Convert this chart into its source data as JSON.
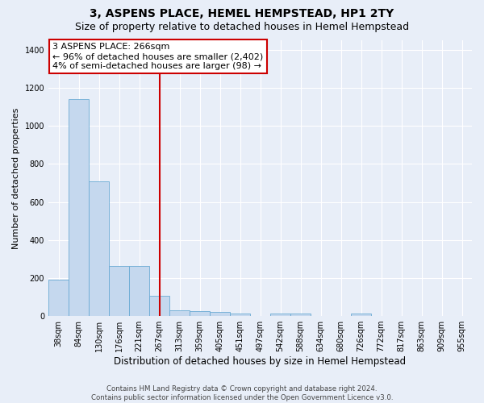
{
  "title": "3, ASPENS PLACE, HEMEL HEMPSTEAD, HP1 2TY",
  "subtitle": "Size of property relative to detached houses in Hemel Hempstead",
  "xlabel": "Distribution of detached houses by size in Hemel Hempstead",
  "ylabel": "Number of detached properties",
  "categories": [
    "38sqm",
    "84sqm",
    "130sqm",
    "176sqm",
    "221sqm",
    "267sqm",
    "313sqm",
    "359sqm",
    "405sqm",
    "451sqm",
    "497sqm",
    "542sqm",
    "588sqm",
    "634sqm",
    "680sqm",
    "726sqm",
    "772sqm",
    "817sqm",
    "863sqm",
    "909sqm",
    "955sqm"
  ],
  "values": [
    190,
    1140,
    710,
    265,
    265,
    107,
    30,
    25,
    20,
    13,
    0,
    13,
    13,
    0,
    0,
    13,
    0,
    0,
    0,
    0,
    0
  ],
  "bar_color": "#c5d8ee",
  "bar_edge_color": "#6aaad4",
  "background_color": "#e8eef8",
  "grid_color": "#ffffff",
  "vline_x_index": 5,
  "vline_color": "#cc0000",
  "annotation_text": "3 ASPENS PLACE: 266sqm\n← 96% of detached houses are smaller (2,402)\n4% of semi-detached houses are larger (98) →",
  "annotation_box_color": "#ffffff",
  "annotation_box_edge_color": "#cc0000",
  "ylim": [
    0,
    1450
  ],
  "yticks": [
    0,
    200,
    400,
    600,
    800,
    1000,
    1200,
    1400
  ],
  "footer": "Contains HM Land Registry data © Crown copyright and database right 2024.\nContains public sector information licensed under the Open Government Licence v3.0.",
  "title_fontsize": 10,
  "subtitle_fontsize": 9,
  "annotation_fontsize": 8,
  "tick_fontsize": 7,
  "ylabel_fontsize": 8,
  "xlabel_fontsize": 8.5
}
